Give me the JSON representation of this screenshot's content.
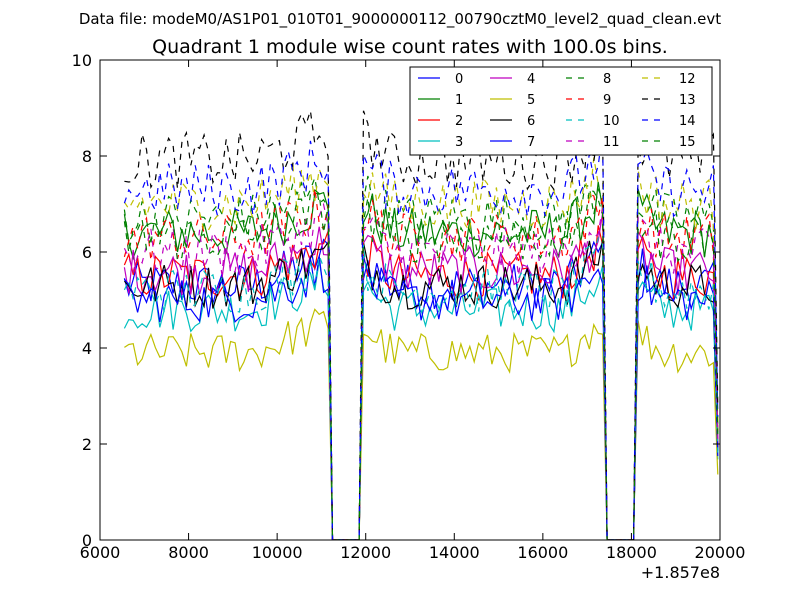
{
  "chart_data": {
    "type": "line",
    "suptitle": "Data file: modeM0/AS1P01_010T01_9000000112_00790cztM0_level2_quad_clean.evt",
    "title": "Quadrant 1 module wise count rates with 100.0s bins.",
    "xlabel": "",
    "ylabel": "",
    "x_offset_label": "+1.857e8",
    "xlim": [
      6000,
      20000
    ],
    "ylim": [
      0,
      10
    ],
    "xticks": [
      6000,
      8000,
      10000,
      12000,
      14000,
      16000,
      18000,
      20000
    ],
    "yticks": [
      0,
      2,
      4,
      6,
      8,
      10
    ],
    "xtick_labels": [
      "6000",
      "8000",
      "10000",
      "12000",
      "14000",
      "16000",
      "18000",
      "20000"
    ],
    "ytick_labels": [
      "0",
      "2",
      "4",
      "6",
      "8",
      "10"
    ],
    "grid": false,
    "legend_position": "top-right",
    "x_start": 6550,
    "bin_width": 100,
    "n_bins": 135,
    "gaps": [
      [
        11250,
        11850
      ],
      [
        17450,
        18050
      ]
    ],
    "series": [
      {
        "name": "0",
        "color": "#0000ff",
        "style": "solid",
        "mean": 5.3
      },
      {
        "name": "1",
        "color": "#008000",
        "style": "solid",
        "mean": 6.4
      },
      {
        "name": "2",
        "color": "#ff0000",
        "style": "solid",
        "mean": 5.5
      },
      {
        "name": "3",
        "color": "#00bfbf",
        "style": "solid",
        "mean": 4.8
      },
      {
        "name": "4",
        "color": "#bf00bf",
        "style": "solid",
        "mean": 5.6
      },
      {
        "name": "5",
        "color": "#bfbf00",
        "style": "solid",
        "mean": 3.9
      },
      {
        "name": "6",
        "color": "#000000",
        "style": "solid",
        "mean": 5.3
      },
      {
        "name": "7",
        "color": "#0000ff",
        "style": "solid",
        "mean": 5.0
      },
      {
        "name": "8",
        "color": "#008000",
        "style": "dashed",
        "mean": 6.7
      },
      {
        "name": "9",
        "color": "#ff0000",
        "style": "dashed",
        "mean": 6.3
      },
      {
        "name": "10",
        "color": "#00bfbf",
        "style": "dashed",
        "mean": 5.2
      },
      {
        "name": "11",
        "color": "#bf00bf",
        "style": "dashed",
        "mean": 6.0
      },
      {
        "name": "12",
        "color": "#bfbf00",
        "style": "dashed",
        "mean": 7.0
      },
      {
        "name": "13",
        "color": "#000000",
        "style": "dashed",
        "mean": 7.9
      },
      {
        "name": "14",
        "color": "#0000ff",
        "style": "dashed",
        "mean": 7.3
      },
      {
        "name": "15",
        "color": "#008000",
        "style": "dashed",
        "mean": 6.3
      }
    ]
  }
}
